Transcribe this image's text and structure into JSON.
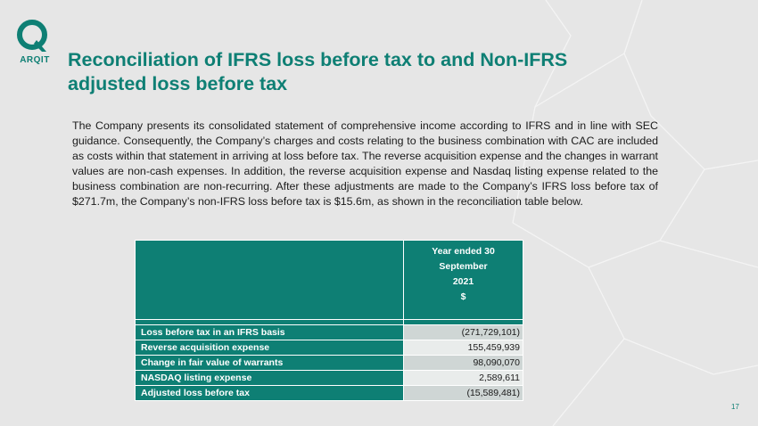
{
  "logo": {
    "wordmark": "ARQIT",
    "accent": "#0e7f74"
  },
  "title_line1": "Reconciliation of IFRS loss before tax to and Non-IFRS",
  "title_line2": "adjusted loss before tax",
  "body": "The Company presents its consolidated statement of comprehensive income according to IFRS and in line with SEC guidance.  Consequently, the Company’s charges and costs relating to the business combination with CAC are included as costs within that statement in arriving at loss before tax. The reverse acquisition expense and the changes in warrant values are non-cash expenses.  In addition, the reverse acquisition expense and Nasdaq listing expense related to the business combination are non-recurring. After these adjustments are made to the Company’s IFRS loss before tax of $271.7m, the Company’s non-IFRS  loss before tax is $15.6m, as shown in the reconciliation table below.",
  "table": {
    "header_lines": [
      "Year ended 30",
      "September",
      "2021",
      "$"
    ],
    "rows": [
      {
        "label": "Loss  before tax in an IFRS basis",
        "value": "(271,729,101)"
      },
      {
        "label": "Reverse acquisition expense",
        "value": "155,459,939"
      },
      {
        "label": "Change in fair value of warrants",
        "value": "98,090,070"
      },
      {
        "label": "NASDAQ  listing  expense",
        "value": "2,589,611"
      },
      {
        "label": "Adjusted  loss  before tax",
        "value": "(15,589,481)"
      }
    ]
  },
  "page_number": "17"
}
